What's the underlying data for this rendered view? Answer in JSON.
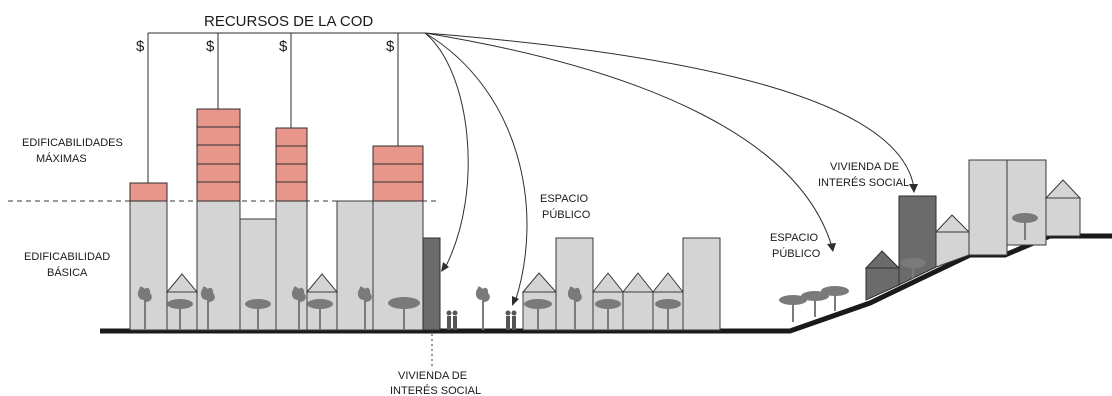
{
  "title": "RECURSOS DE LA COD",
  "currency_symbol": "$",
  "labels": {
    "max_line1": "EDIFICABILIDADES",
    "max_line2": "MÁXIMAS",
    "basic_line1": "EDIFICABILIDAD",
    "basic_line2": "BÁSICA",
    "public_space_line1": "ESPACIO",
    "public_space_line2": "PÚBLICO",
    "social_housing_line1": "VIVIENDA DE",
    "social_housing_line2": "INTERÉS SOCIAL"
  },
  "colors": {
    "building": "#d4d4d4",
    "social_housing": "#6b6b6b",
    "bonus_floors": "#e8968a",
    "ground": "#1a1a1a"
  }
}
